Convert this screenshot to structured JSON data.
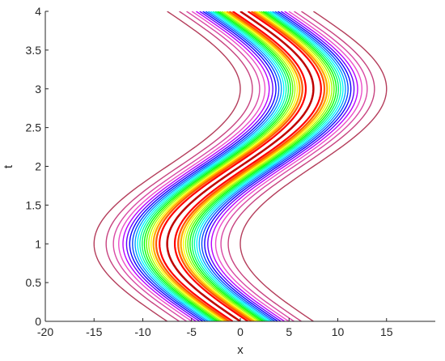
{
  "chart_data": {
    "type": "contour",
    "title": "",
    "xlabel": "x",
    "ylabel": "t",
    "xlim": [
      -20,
      20
    ],
    "ylim": [
      0,
      4
    ],
    "xticks": [
      -20,
      -15,
      -10,
      -5,
      0,
      5,
      10,
      15
    ],
    "yticks": [
      0,
      0.5,
      1,
      1.5,
      2,
      2.5,
      3,
      3.5,
      4
    ],
    "xtick_labels": [
      "-20",
      "-15",
      "-10",
      "-5",
      "0",
      "5",
      "10",
      "15"
    ],
    "ytick_labels": [
      "0",
      "0.5",
      "1",
      "1.5",
      "2",
      "2.5",
      "3",
      "3.5",
      "4"
    ],
    "grid": false,
    "colormap": "hsv",
    "ridge": {
      "description_of_center_curve": "sinusoidal wave crest",
      "center_x_at_t": [
        {
          "t": 0,
          "x": 0
        },
        {
          "t": 0.5,
          "x": -5.5
        },
        {
          "t": 1,
          "x": -7.5
        },
        {
          "t": 1.5,
          "x": -5.5
        },
        {
          "t": 2,
          "x": 0
        },
        {
          "t": 2.5,
          "x": 5.5
        },
        {
          "t": 3,
          "x": 7.5
        },
        {
          "t": 3.5,
          "x": 5.5
        },
        {
          "t": 4,
          "x": 0
        }
      ],
      "amplitude": 7.5,
      "period": 4,
      "outer_half_width": 7.5
    },
    "contour_levels": [
      0.05,
      0.1,
      0.15,
      0.2,
      0.25,
      0.3,
      0.35,
      0.4,
      0.45,
      0.5,
      0.55,
      0.6,
      0.65,
      0.7,
      0.75,
      0.8,
      0.85,
      0.9,
      0.95
    ]
  }
}
